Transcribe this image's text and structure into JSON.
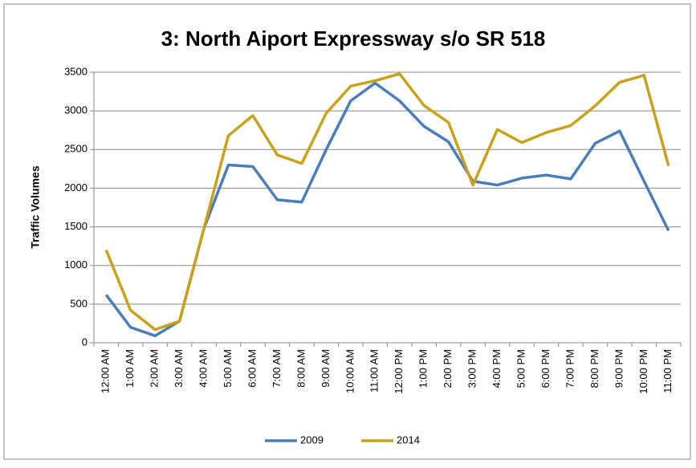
{
  "chart_data": {
    "type": "line",
    "title": "3: North Aiport Expressway s/o SR 518",
    "y_label": "Traffic Volumes",
    "categories": [
      "12:00 AM",
      "1:00 AM",
      "2:00 AM",
      "3:00 AM",
      "4:00 AM",
      "5:00 AM",
      "6:00 AM",
      "7:00 AM",
      "8:00 AM",
      "9:00 AM",
      "10:00 AM",
      "11:00 AM",
      "12:00 PM",
      "1:00 PM",
      "2:00 PM",
      "3:00 PM",
      "4:00 PM",
      "5:00 PM",
      "6:00 PM",
      "7:00 PM",
      "8:00 PM",
      "9:00 PM",
      "10:00 PM",
      "11:00 PM"
    ],
    "series": [
      {
        "name": "2009",
        "color": "#4a7ebb",
        "values": [
          620,
          200,
          90,
          280,
          1480,
          2300,
          2280,
          1850,
          1820,
          2500,
          3130,
          3360,
          3130,
          2800,
          2600,
          2090,
          2040,
          2130,
          2170,
          2120,
          2580,
          2740,
          2090,
          1450
        ]
      },
      {
        "name": "2014",
        "color": "#c9a21a",
        "values": [
          1200,
          420,
          170,
          280,
          1480,
          2680,
          2940,
          2430,
          2320,
          2970,
          3320,
          3390,
          3480,
          3070,
          2850,
          2040,
          2760,
          2590,
          2720,
          2810,
          3065,
          3370,
          3460,
          2290
        ]
      }
    ],
    "ylim": [
      0,
      3500
    ],
    "yticks": [
      0,
      500,
      1000,
      1500,
      2000,
      2500,
      3000,
      3500
    ],
    "grid": true,
    "legend": "bottom"
  }
}
